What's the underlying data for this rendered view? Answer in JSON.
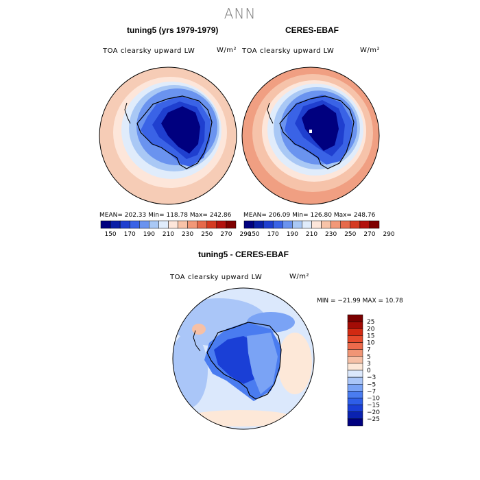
{
  "figure": {
    "title": "ANN",
    "panels": [
      {
        "title": "tuning5 (yrs 1979-1979)",
        "variable": "TOA clearsky upward LW",
        "units": "W/m²",
        "stats": "MEAN= 202.33    Min= 118.78    Max= 242.86"
      },
      {
        "title": "CERES-EBAF",
        "variable": "TOA clearsky upward LW",
        "units": "W/m²",
        "stats": "MEAN= 206.09    Min= 126.80    Max= 248.76"
      },
      {
        "title": "tuning5 - CERES-EBAF",
        "variable": "TOA clearsky upward LW",
        "units": "W/m²",
        "stats": "MIN = −21.99 MAX =  10.78"
      }
    ],
    "colors": {
      "abs_scale": [
        "#00007f",
        "#0a1fa6",
        "#1f3fcf",
        "#3a63e6",
        "#6a93ef",
        "#a9c8f5",
        "#e0ecfb",
        "#fde6da",
        "#f8c3a8",
        "#f29878",
        "#e66a4b",
        "#d43b22",
        "#b3120e",
        "#7f0000"
      ],
      "diff_scale": [
        "#000080",
        "#0a22b0",
        "#1a3fd6",
        "#2e5ee8",
        "#4a7cf0",
        "#7aa3f5",
        "#aac6f8",
        "#dbe8fc",
        "#fde8d8",
        "#f6c0a6",
        "#f09575",
        "#ec6a4b",
        "#e64a2c",
        "#d22a12",
        "#a30c06",
        "#7a0000"
      ]
    }
  },
  "chart_data": [
    {
      "type": "heatmap",
      "title": "tuning5 (yrs 1979-1979)",
      "projection": "south polar stereographic",
      "variable": "TOA clearsky upward LW",
      "units": "W/m²",
      "mean": 202.33,
      "min": 118.78,
      "max": 242.86,
      "contour_levels": [
        150,
        160,
        170,
        180,
        190,
        200,
        210,
        220,
        230,
        240,
        250,
        260,
        270,
        280,
        290
      ],
      "colorbar_ticks": [
        "150",
        "170",
        "190",
        "210",
        "230",
        "250",
        "270",
        "290"
      ]
    },
    {
      "type": "heatmap",
      "title": "CERES-EBAF",
      "projection": "south polar stereographic",
      "variable": "TOA clearsky upward LW",
      "units": "W/m²",
      "mean": 206.09,
      "min": 126.8,
      "max": 248.76,
      "contour_levels": [
        150,
        160,
        170,
        180,
        190,
        200,
        210,
        220,
        230,
        240,
        250,
        260,
        270,
        280,
        290
      ],
      "colorbar_ticks": [
        "150",
        "170",
        "190",
        "210",
        "230",
        "250",
        "270",
        "290"
      ]
    },
    {
      "type": "heatmap",
      "title": "tuning5 - CERES-EBAF",
      "projection": "south polar stereographic",
      "variable": "TOA clearsky upward LW",
      "units": "W/m²",
      "min": -21.99,
      "max": 10.78,
      "contour_levels": [
        -25,
        -20,
        -15,
        -10,
        -7,
        -5,
        -3,
        0,
        3,
        5,
        7,
        10,
        15,
        20,
        25
      ],
      "colorbar_ticks": [
        "25",
        "20",
        "15",
        "10",
        "7",
        "5",
        "3",
        "0",
        "−3",
        "−5",
        "−7",
        "−10",
        "−15",
        "−20",
        "−25"
      ]
    }
  ]
}
